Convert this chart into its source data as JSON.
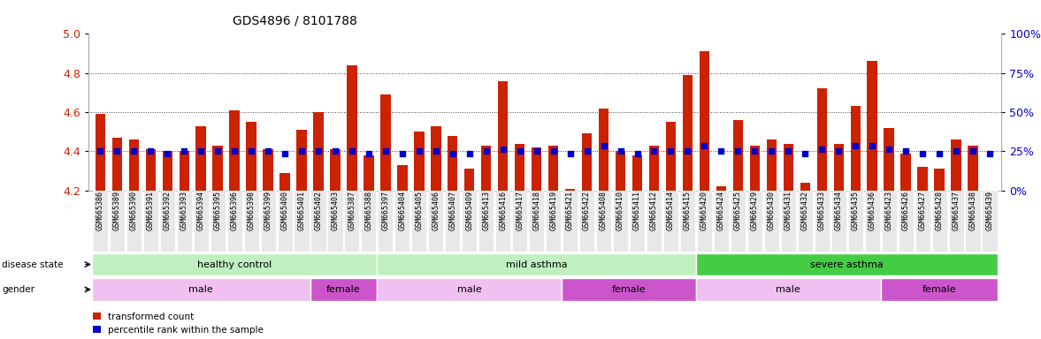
{
  "title": "GDS4896 / 8101788",
  "samples": [
    "GSM665386",
    "GSM665389",
    "GSM665390",
    "GSM665391",
    "GSM665392",
    "GSM665393",
    "GSM665394",
    "GSM665395",
    "GSM665396",
    "GSM665398",
    "GSM665399",
    "GSM665400",
    "GSM665401",
    "GSM665402",
    "GSM665403",
    "GSM665387",
    "GSM665388",
    "GSM665397",
    "GSM665404",
    "GSM665405",
    "GSM665406",
    "GSM665407",
    "GSM665409",
    "GSM665413",
    "GSM665416",
    "GSM665417",
    "GSM665418",
    "GSM665419",
    "GSM665421",
    "GSM665422",
    "GSM665408",
    "GSM665410",
    "GSM665411",
    "GSM665412",
    "GSM665414",
    "GSM665415",
    "GSM665420",
    "GSM665424",
    "GSM665425",
    "GSM665429",
    "GSM665430",
    "GSM665431",
    "GSM665432",
    "GSM665433",
    "GSM665434",
    "GSM665435",
    "GSM665436",
    "GSM665423",
    "GSM665426",
    "GSM665427",
    "GSM665428",
    "GSM665437",
    "GSM665438",
    "GSM665439"
  ],
  "bar_values": [
    4.59,
    4.47,
    4.46,
    4.41,
    4.4,
    4.4,
    4.53,
    4.43,
    4.61,
    4.55,
    4.41,
    4.29,
    4.51,
    4.6,
    4.41,
    4.84,
    4.38,
    4.69,
    4.33,
    4.5,
    4.53,
    4.48,
    4.31,
    4.43,
    4.76,
    4.44,
    4.42,
    4.43,
    4.21,
    4.49,
    4.62,
    4.4,
    4.38,
    4.43,
    4.55,
    4.79,
    4.91,
    4.22,
    4.56,
    4.43,
    4.46,
    4.44,
    4.24,
    4.72,
    4.44,
    4.63,
    4.86,
    4.52,
    4.39,
    4.32,
    4.31,
    4.46,
    4.43,
    4.2
  ],
  "dot_values": [
    4.4,
    4.4,
    4.4,
    4.4,
    4.39,
    4.4,
    4.4,
    4.4,
    4.4,
    4.4,
    4.4,
    4.39,
    4.4,
    4.4,
    4.4,
    4.4,
    4.39,
    4.4,
    4.39,
    4.4,
    4.4,
    4.39,
    4.39,
    4.4,
    4.41,
    4.4,
    4.4,
    4.4,
    4.39,
    4.4,
    4.43,
    4.4,
    4.39,
    4.4,
    4.4,
    4.4,
    4.43,
    4.4,
    4.4,
    4.4,
    4.4,
    4.4,
    4.39,
    4.41,
    4.4,
    4.43,
    4.43,
    4.41,
    4.4,
    4.39,
    4.39,
    4.4,
    4.4,
    4.39
  ],
  "ylim": [
    4.2,
    5.0
  ],
  "yticks": [
    4.2,
    4.4,
    4.6,
    4.8,
    5.0
  ],
  "hlines": [
    4.4,
    4.6,
    4.8
  ],
  "right_yticks": [
    0,
    25,
    50,
    75,
    100
  ],
  "right_ytick_labels": [
    "0%",
    "25%",
    "50%",
    "75%",
    "100%"
  ],
  "bar_color": "#cc2200",
  "dot_color": "#0000cc",
  "background_color": "#ffffff",
  "hline_color": "#444444",
  "disease_groups": [
    {
      "label": "healthy control",
      "start": 0,
      "end": 17,
      "color": "#c0f0c0"
    },
    {
      "label": "mild asthma",
      "start": 17,
      "end": 36,
      "color": "#c0f0c0"
    },
    {
      "label": "severe asthma",
      "start": 36,
      "end": 54,
      "color": "#44cc44"
    }
  ],
  "gender_groups": [
    {
      "label": "male",
      "start": 0,
      "end": 13,
      "color": "#f0c0f0"
    },
    {
      "label": "female",
      "start": 13,
      "end": 17,
      "color": "#cc55cc"
    },
    {
      "label": "male",
      "start": 17,
      "end": 28,
      "color": "#f0c0f0"
    },
    {
      "label": "female",
      "start": 28,
      "end": 36,
      "color": "#cc55cc"
    },
    {
      "label": "male",
      "start": 36,
      "end": 47,
      "color": "#f0c0f0"
    },
    {
      "label": "female",
      "start": 47,
      "end": 54,
      "color": "#cc55cc"
    }
  ],
  "xlabel_fontsize": 6.0,
  "ylabel_fontsize": 9,
  "title_fontsize": 10,
  "annot_fontsize": 8,
  "legend_fontsize": 7.5,
  "label_fontsize": 7.5
}
